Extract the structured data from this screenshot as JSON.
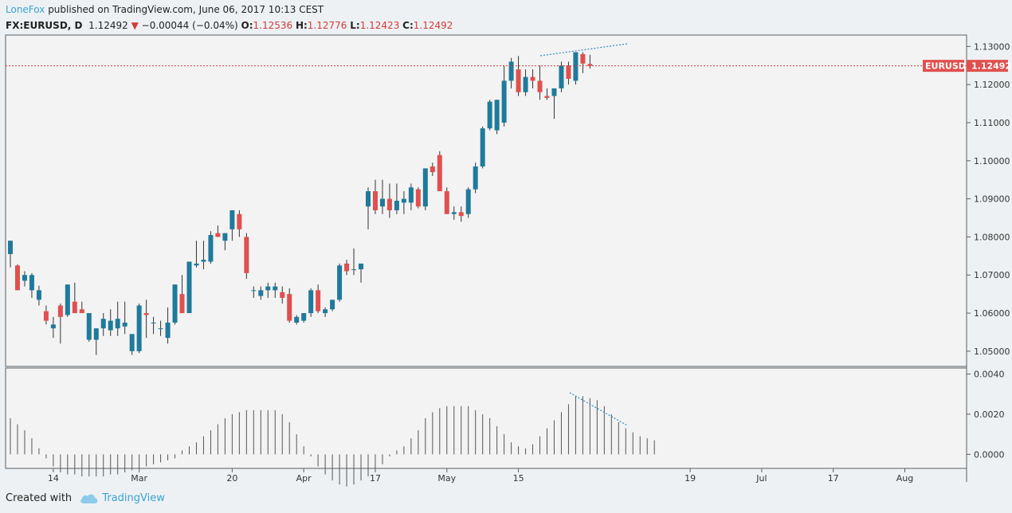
{
  "header": {
    "author": "LoneFox",
    "published_text": "published on TradingView.com, June 06, 2017 10:13 CEST",
    "symbol": "FX:EURUSD, D",
    "last_price": "1.12492",
    "change": "−0.00044 (−0.04%)",
    "open_label": "O:",
    "open_value": "1.12536",
    "high_label": "H:",
    "high_value": "1.12776",
    "low_label": "L:",
    "low_value": "1.12423",
    "close_label": "C:",
    "close_value": "1.12492"
  },
  "footer": {
    "created_with": "Created with",
    "brand": "TradingView"
  },
  "colors": {
    "up": "#1f7a9b",
    "down": "#e0504e",
    "price_line": "#d23b3b",
    "trendline": "#2e8fbf",
    "histogram": "#555555"
  },
  "chart_data": [
    {
      "type": "candlestick",
      "symbol_tag": "EURUSD",
      "last_price": 1.12492,
      "ylim": [
        1.046,
        1.133
      ],
      "y_ticks": [
        1.05,
        1.06,
        1.07,
        1.08,
        1.09,
        1.1,
        1.11,
        1.12,
        1.13
      ],
      "y_tick_labels": [
        "1.05000",
        "1.06000",
        "1.07000",
        "1.08000",
        "1.09000",
        "1.10000",
        "1.11000",
        "1.12000",
        "1.13000"
      ],
      "x_tick_labels": [
        "14",
        "Mar",
        "20",
        "Apr",
        "17",
        "May",
        "15",
        "19",
        "Jul",
        "17",
        "Aug"
      ],
      "x_tick_bar_index": [
        6,
        18,
        31,
        41,
        51,
        61,
        71,
        95,
        105,
        115,
        125
      ],
      "ohlc": [
        [
          1.0755,
          1.079,
          1.072,
          1.079
        ],
        [
          1.0725,
          1.0728,
          1.066,
          1.066
        ],
        [
          1.0685,
          1.071,
          1.067,
          1.07
        ],
        [
          1.066,
          1.0705,
          1.064,
          1.07
        ],
        [
          1.0635,
          1.0672,
          1.062,
          1.066
        ],
        [
          1.0605,
          1.062,
          1.057,
          1.058
        ],
        [
          1.056,
          1.059,
          1.0535,
          1.057
        ],
        [
          1.062,
          1.0625,
          1.052,
          1.059
        ],
        [
          1.0595,
          1.0675,
          1.059,
          1.0675
        ],
        [
          1.063,
          1.068,
          1.06,
          1.06
        ],
        [
          1.061,
          1.063,
          1.06,
          1.06
        ],
        [
          1.053,
          1.06,
          1.0525,
          1.06
        ],
        [
          1.053,
          1.056,
          1.049,
          1.056
        ],
        [
          1.056,
          1.06,
          1.054,
          1.0585
        ],
        [
          1.0555,
          1.061,
          1.054,
          1.058
        ],
        [
          1.056,
          1.063,
          1.054,
          1.0585
        ],
        [
          1.0565,
          1.063,
          1.0545,
          1.0575
        ],
        [
          1.05,
          1.0545,
          1.049,
          1.0545
        ],
        [
          1.05,
          1.0625,
          1.0495,
          1.062
        ],
        [
          1.06,
          1.0635,
          1.0535,
          1.0595
        ],
        [
          1.0575,
          1.059,
          1.0545,
          1.0575
        ],
        [
          1.056,
          1.058,
          1.054,
          1.056
        ],
        [
          1.0535,
          1.0615,
          1.052,
          1.0575
        ],
        [
          1.0575,
          1.0675,
          1.057,
          1.0675
        ],
        [
          1.065,
          1.07,
          1.06,
          1.06
        ],
        [
          1.06,
          1.0735,
          1.06,
          1.0735
        ],
        [
          1.0725,
          1.079,
          1.072,
          1.073
        ],
        [
          1.0735,
          1.079,
          1.0715,
          1.074
        ],
        [
          1.0735,
          1.0815,
          1.073,
          1.0805
        ],
        [
          1.081,
          1.083,
          1.08,
          1.08
        ],
        [
          1.079,
          1.081,
          1.0765,
          1.081
        ],
        [
          1.082,
          1.087,
          1.079,
          1.087
        ],
        [
          1.086,
          1.087,
          1.08,
          1.082
        ],
        [
          1.08,
          1.081,
          1.069,
          1.0705
        ],
        [
          1.066,
          1.067,
          1.064,
          1.066
        ],
        [
          1.0645,
          1.067,
          1.0635,
          1.066
        ],
        [
          1.066,
          1.068,
          1.064,
          1.067
        ],
        [
          1.066,
          1.068,
          1.064,
          1.067
        ],
        [
          1.0655,
          1.067,
          1.0625,
          1.064
        ],
        [
          1.065,
          1.0665,
          1.0575,
          1.058
        ],
        [
          1.0575,
          1.0595,
          1.057,
          1.059
        ],
        [
          1.058,
          1.06,
          1.0575,
          1.06
        ],
        [
          1.06,
          1.0665,
          1.059,
          1.066
        ],
        [
          1.066,
          1.0675,
          1.06,
          1.0605
        ],
        [
          1.06,
          1.0615,
          1.059,
          1.061
        ],
        [
          1.061,
          1.0635,
          1.0605,
          1.0635
        ],
        [
          1.0635,
          1.073,
          1.063,
          1.0725
        ],
        [
          1.073,
          1.074,
          1.07,
          1.071
        ],
        [
          1.0715,
          1.077,
          1.07,
          1.0715
        ],
        [
          1.0715,
          1.073,
          1.068,
          1.073
        ],
        [
          1.088,
          1.093,
          1.082,
          1.092
        ],
        [
          1.092,
          1.095,
          1.086,
          1.087
        ],
        [
          1.088,
          1.095,
          1.086,
          1.09
        ],
        [
          1.09,
          1.094,
          1.085,
          1.087
        ],
        [
          1.087,
          1.094,
          1.086,
          1.0895
        ],
        [
          1.089,
          1.092,
          1.086,
          1.09
        ],
        [
          1.089,
          1.094,
          1.087,
          1.093
        ],
        [
          1.0925,
          1.093,
          1.0875,
          1.088
        ],
        [
          1.088,
          1.098,
          1.087,
          1.098
        ],
        [
          1.0985,
          1.0995,
          1.096,
          1.097
        ],
        [
          1.1015,
          1.1025,
          1.092,
          1.092
        ],
        [
          1.092,
          1.093,
          1.086,
          1.086
        ],
        [
          1.086,
          1.088,
          1.0845,
          1.0865
        ],
        [
          1.0865,
          1.088,
          1.084,
          1.0855
        ],
        [
          1.086,
          1.093,
          1.085,
          1.0925
        ],
        [
          1.0925,
          1.0995,
          1.0915,
          1.0985
        ],
        [
          1.0985,
          1.109,
          1.098,
          1.1085
        ],
        [
          1.1085,
          1.116,
          1.108,
          1.1155
        ],
        [
          1.108,
          1.116,
          1.107,
          1.116
        ],
        [
          1.11,
          1.125,
          1.109,
          1.121
        ],
        [
          1.121,
          1.127,
          1.119,
          1.126
        ],
        [
          1.124,
          1.1275,
          1.117,
          1.118
        ],
        [
          1.118,
          1.124,
          1.117,
          1.122
        ],
        [
          1.122,
          1.124,
          1.119,
          1.121
        ],
        [
          1.121,
          1.125,
          1.116,
          1.118
        ],
        [
          1.117,
          1.119,
          1.116,
          1.1165
        ],
        [
          1.117,
          1.119,
          1.111,
          1.119
        ],
        [
          1.119,
          1.126,
          1.118,
          1.125
        ],
        [
          1.125,
          1.126,
          1.12,
          1.1215
        ],
        [
          1.121,
          1.1285,
          1.12,
          1.1285
        ],
        [
          1.128,
          1.1285,
          1.123,
          1.1255
        ],
        [
          1.1254,
          1.1278,
          1.1242,
          1.1249
        ]
      ]
    },
    {
      "type": "bar",
      "ylim": [
        -0.0007,
        0.0043
      ],
      "y_ticks": [
        0.0,
        0.002,
        0.004
      ],
      "y_tick_labels": [
        "0.0000",
        "0.0020",
        "0.0040"
      ],
      "values": [
        0.0018,
        0.0015,
        0.0012,
        0.0008,
        0.0003,
        -0.0002,
        -0.0006,
        -0.0009,
        -0.001,
        -0.001,
        -0.0011,
        -0.0011,
        -0.0011,
        -0.0011,
        -0.001,
        -0.001,
        -0.0009,
        -0.0008,
        -0.0007,
        -0.0006,
        -0.0005,
        -0.0004,
        -0.0003,
        -0.0002,
        0.0002,
        0.0004,
        0.0006,
        0.0009,
        0.0012,
        0.0015,
        0.0018,
        0.002,
        0.0021,
        0.0022,
        0.0022,
        0.0022,
        0.0022,
        0.0022,
        0.002,
        0.0016,
        0.001,
        0.0004,
        -0.0001,
        -0.0006,
        -0.001,
        -0.0013,
        -0.0015,
        -0.0016,
        -0.0015,
        -0.0013,
        -0.0011,
        -0.0008,
        -0.0005,
        -0.0001,
        0.0002,
        0.0004,
        0.0008,
        0.0012,
        0.0018,
        0.0021,
        0.0023,
        0.0024,
        0.0024,
        0.0024,
        0.0024,
        0.0022,
        0.002,
        0.0018,
        0.0014,
        0.001,
        0.0006,
        0.0004,
        0.0003,
        0.0005,
        0.0009,
        0.0013,
        0.0017,
        0.0021,
        0.0025,
        0.0029,
        0.0029,
        0.0028,
        0.0027,
        0.0024,
        0.002,
        0.0016,
        0.0013,
        0.0011,
        0.0009,
        0.0008,
        0.0007
      ]
    }
  ]
}
